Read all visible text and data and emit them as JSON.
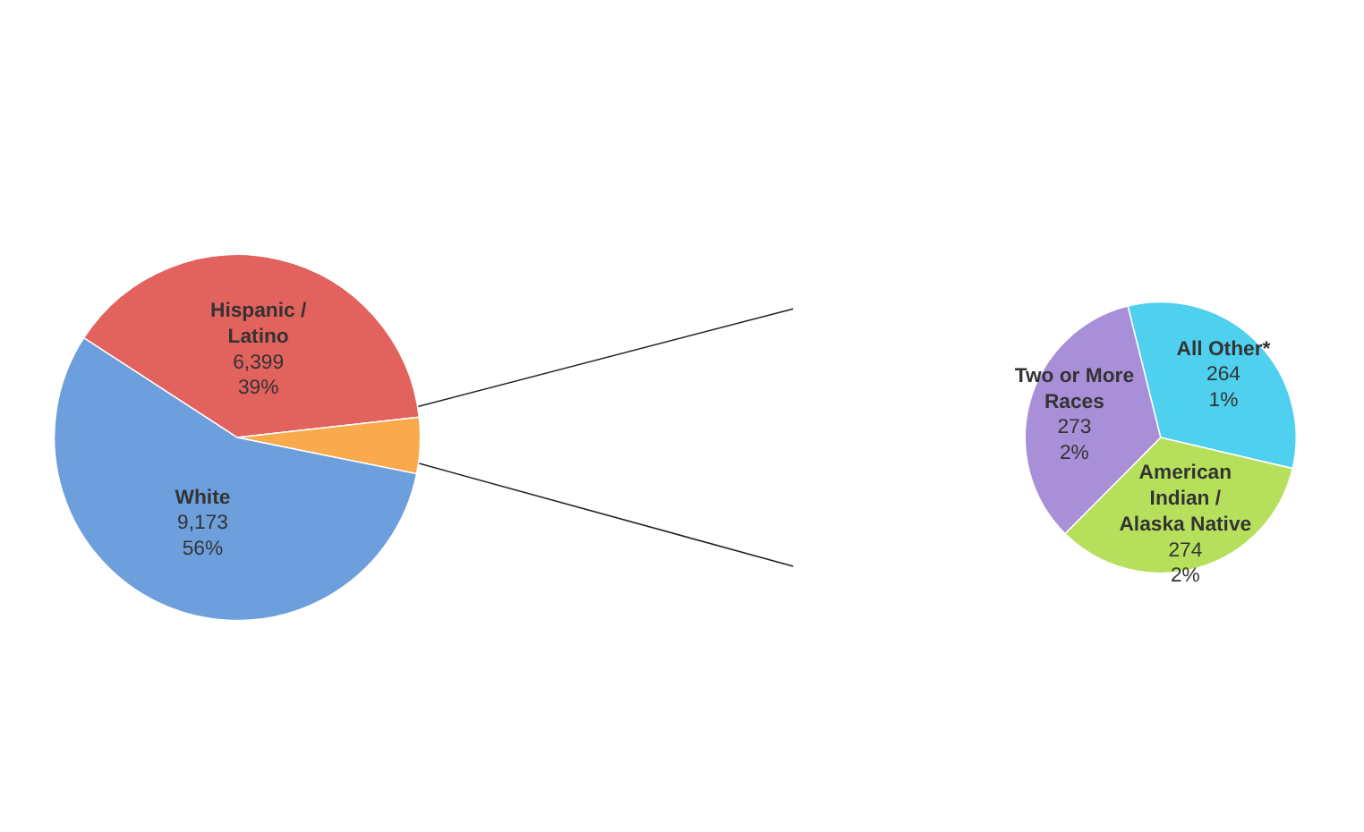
{
  "chart_data": [
    {
      "type": "pie",
      "categories": [
        "Hispanic / Latino",
        null,
        "White"
      ],
      "values": [
        6399,
        811,
        9173
      ],
      "colors": [
        "#e2625d",
        "#f9aa4d",
        "#6d9fdd"
      ],
      "value_labels": [
        "6,399\n39%",
        null,
        "9,173\n56%"
      ]
    },
    {
      "type": "pie",
      "categories": [
        "All Other*",
        "American Indian / Alaska Native",
        "Two or More Races"
      ],
      "values": [
        264,
        274,
        273
      ],
      "colors": [
        "#4fd0ee",
        "#b6e05c",
        "#a98fd8"
      ],
      "value_labels": [
        "264\n1%",
        "274\n2%",
        "273\n2%"
      ]
    }
  ]
}
